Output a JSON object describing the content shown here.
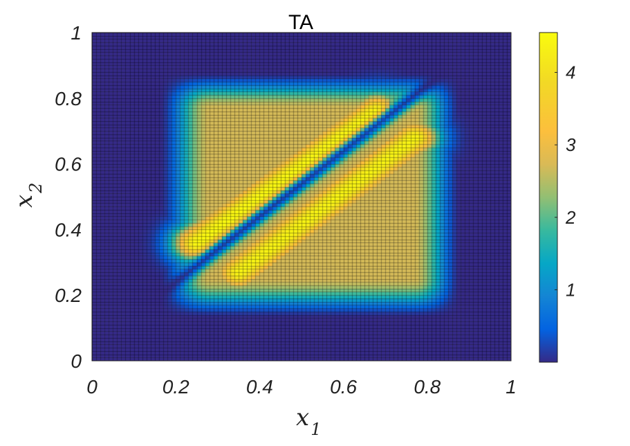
{
  "chart_data": {
    "type": "heatmap",
    "title": "TA",
    "xlabel": "x",
    "xlabel_sub": "1",
    "ylabel": "x",
    "ylabel_sub": "2",
    "xlim": [
      0,
      1
    ],
    "ylim": [
      0,
      1
    ],
    "x_ticks": [
      "0",
      "0.2",
      "0.4",
      "0.6",
      "0.8",
      "1"
    ],
    "y_ticks": [
      "0",
      "0.2",
      "0.4",
      "0.6",
      "0.8",
      "1"
    ],
    "grid_cells": 100,
    "colormap": "parula",
    "colorbar": {
      "range": [
        0,
        4.55
      ],
      "ticks": [
        "1",
        "2",
        "3",
        "4"
      ],
      "placement": "right"
    },
    "features": {
      "upper_band": {
        "from": [
          0.25,
          0.36
        ],
        "to": [
          0.68,
          0.76
        ],
        "peak": 4.5
      },
      "lower_band": {
        "from": [
          0.35,
          0.27
        ],
        "to": [
          0.77,
          0.68
        ],
        "peak": 4.4
      },
      "diagonal_minimum": "x2 = x1 + 0.04",
      "plateau_region": {
        "x": [
          0.2,
          0.85
        ],
        "y": [
          0.17,
          0.85
        ],
        "level": 2.7
      }
    }
  }
}
